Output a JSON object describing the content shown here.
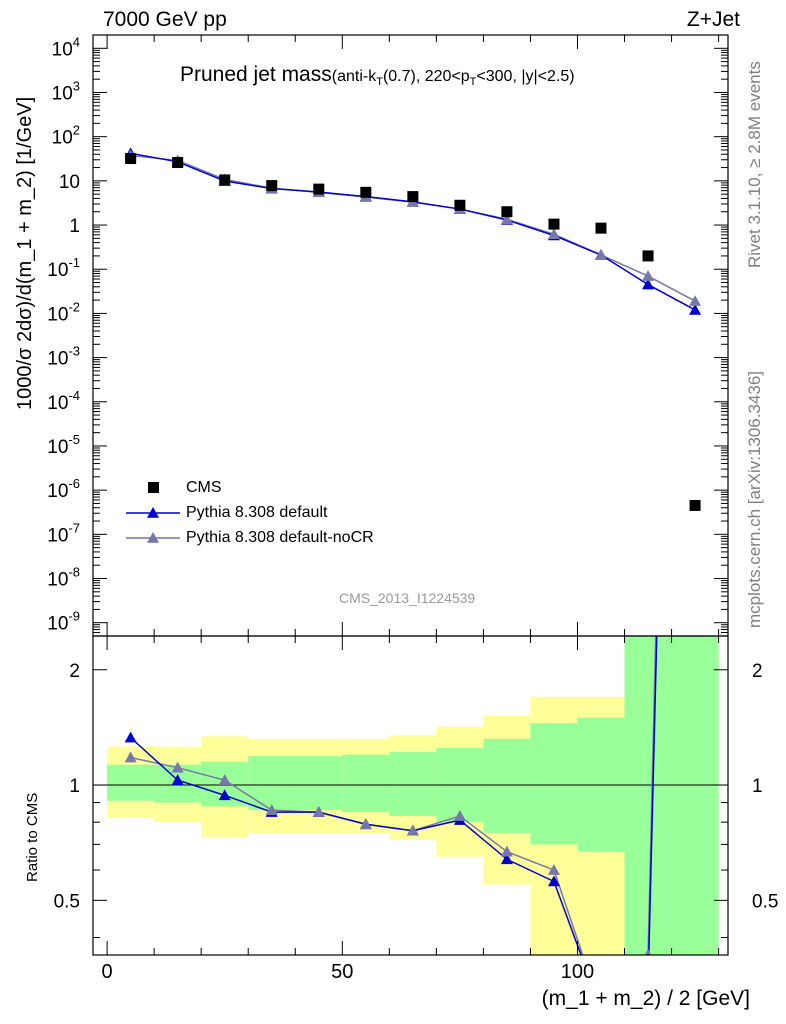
{
  "header": {
    "left": "7000 GeV pp",
    "right": "Z+Jet",
    "analysis_id": "CMS_2013_I1224539",
    "side_top": "Rivet 3.1.10, ≥ 2.8M events",
    "side_bottom": "mcplots.cern.ch [arXiv:1306.3436]"
  },
  "title": {
    "main": "Pruned jet mass",
    "sub": "(anti-k_T(0.7), 220<p_T<300, |y|<2.5)"
  },
  "axes": {
    "ylabel_main": "1000/σ 2dσ)/d(m_1 + m_2) [1/GeV]",
    "ylabel_ratio": "Ratio to CMS",
    "xlabel": "(m_1 + m_2) / 2 [GeV]"
  },
  "legend": {
    "entries": [
      "CMS",
      "Pythia 8.308 default",
      "Pythia 8.308 default-noCR"
    ]
  },
  "colors": {
    "data": "#000000",
    "default": "#0000cc",
    "nocr": "#7777aa",
    "band_inner": "#99ff99",
    "band_outer": "#ffff99"
  },
  "chart_data": {
    "type": "scatter",
    "xlim": [
      -3,
      132
    ],
    "x_ticks": [
      0,
      50,
      100
    ],
    "main": {
      "yscale": "log",
      "ylim": [
        5e-10,
        20000.0
      ],
      "y_tick_exponents": [
        -9,
        -8,
        -7,
        -6,
        -5,
        -4,
        -3,
        -2,
        -1,
        0,
        1,
        2,
        3,
        4
      ],
      "y_tick_labels": [
        "10^-9",
        "10^-8",
        "10^-7",
        "10^-6",
        "10^-5",
        "10^-4",
        "10^-3",
        "10^-2",
        "10^-1",
        "1",
        "10",
        "10^2",
        "10^3",
        "10^4"
      ]
    },
    "x": [
      5,
      15,
      25,
      35,
      45,
      55,
      65,
      75,
      85,
      95,
      105,
      115,
      125
    ],
    "bin_edges": [
      0,
      10,
      20,
      30,
      40,
      50,
      60,
      70,
      80,
      90,
      100,
      110,
      120,
      130
    ],
    "series": [
      {
        "name": "CMS",
        "values": [
          32,
          26,
          10.5,
          7.8,
          6.5,
          5.5,
          4.4,
          2.8,
          2.0,
          1.05,
          0.85,
          0.2,
          4.5e-07
        ]
      },
      {
        "name": "Pythia 8.308 default",
        "values": [
          42,
          27,
          9.9,
          6.7,
          5.6,
          4.4,
          3.35,
          2.3,
          1.3,
          0.58,
          0.21,
          0.045,
          0.012
        ]
      },
      {
        "name": "Pythia 8.308 default-noCR",
        "values": [
          37.5,
          29,
          10.8,
          6.8,
          5.5,
          4.3,
          3.3,
          2.3,
          1.35,
          0.62,
          0.21,
          0.07,
          0.019
        ]
      }
    ],
    "ratio": {
      "ylim": [
        0.36,
        2.45
      ],
      "y_ticks": [
        0.5,
        1,
        2
      ],
      "default": [
        1.33,
        1.03,
        0.94,
        0.85,
        0.85,
        0.79,
        0.76,
        0.81,
        0.64,
        0.56,
        0.26,
        0.3,
        25000.0
      ],
      "nocr": [
        1.18,
        1.11,
        1.03,
        0.86,
        0.85,
        0.79,
        0.76,
        0.83,
        0.67,
        0.6,
        0.26,
        0.36,
        43000.0
      ],
      "band_inner": [
        [
          0.91,
          1.13
        ],
        [
          0.9,
          1.13
        ],
        [
          0.88,
          1.15
        ],
        [
          0.86,
          1.19
        ],
        [
          0.86,
          1.19
        ],
        [
          0.85,
          1.2
        ],
        [
          0.83,
          1.22
        ],
        [
          0.8,
          1.25
        ],
        [
          0.75,
          1.32
        ],
        [
          0.7,
          1.45
        ],
        [
          0.67,
          1.5
        ],
        [
          0.2,
          5
        ],
        [
          0.2,
          5
        ]
      ],
      "band_outer": [
        [
          0.82,
          1.26
        ],
        [
          0.8,
          1.26
        ],
        [
          0.73,
          1.34
        ],
        [
          0.75,
          1.32
        ],
        [
          0.75,
          1.32
        ],
        [
          0.75,
          1.32
        ],
        [
          0.72,
          1.35
        ],
        [
          0.65,
          1.42
        ],
        [
          0.55,
          1.52
        ],
        [
          0.35,
          1.7
        ],
        [
          0.25,
          1.7
        ],
        [
          0.2,
          5
        ],
        [
          0.2,
          5
        ]
      ]
    }
  }
}
